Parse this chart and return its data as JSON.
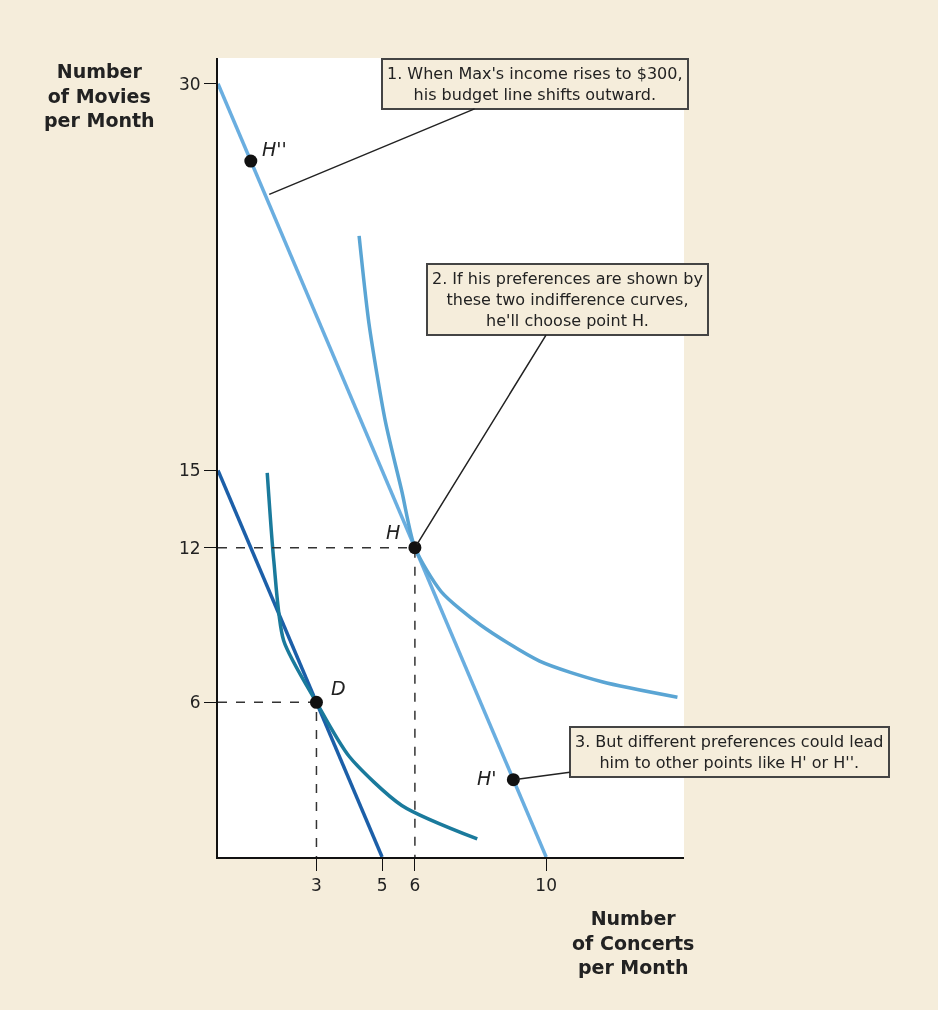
{
  "chart_data": {
    "type": "line",
    "xlabel": "Number\nof Concerts\nper Month",
    "ylabel": "Number\nof Movies\nper Month",
    "xlim": [
      0,
      14.2
    ],
    "ylim": [
      0,
      31
    ],
    "xticks": [
      3,
      5,
      6,
      10
    ],
    "yticks": [
      6,
      12,
      15,
      30
    ],
    "series": [
      {
        "color": "#1c5fa8",
        "x": [
          0,
          5
        ],
        "values": [
          15,
          0
        ]
      },
      {
        "color": "#6aaee0",
        "x": [
          0,
          10
        ],
        "values": [
          30,
          0
        ]
      },
      {
        "color": "#1a7a9c",
        "x": [
          1.5,
          1.7,
          2.0,
          3.0,
          4.0,
          5.6,
          7.9
        ],
        "values": [
          14.9,
          11.5,
          8.4,
          6.0,
          3.9,
          2.0,
          0.7
        ]
      },
      {
        "color": "#5aa5d4",
        "x": [
          4.3,
          4.6,
          5.1,
          5.6,
          6.0,
          6.8,
          8.0,
          9.8,
          11.7,
          14.0
        ],
        "values": [
          24.1,
          20.7,
          16.9,
          14.2,
          12.0,
          10.3,
          9.0,
          7.6,
          6.8,
          6.2
        ]
      },
      {
        "color": "#333333",
        "line_style": "dashed",
        "x": [
          0,
          6,
          6
        ],
        "values": [
          12,
          12,
          0
        ]
      },
      {
        "color": "#333333",
        "line_style": "dashed",
        "x": [
          0,
          3,
          3
        ],
        "values": [
          6,
          6,
          0
        ]
      },
      {
        "type": "scatter",
        "color": "#111111",
        "marker": "circle",
        "x": [
          1,
          3,
          6,
          9
        ],
        "values": [
          27,
          6,
          12,
          3
        ]
      }
    ],
    "annotations": [
      {
        "text": "H''",
        "x": 1,
        "y": 27
      },
      {
        "text": "D",
        "x": 3,
        "y": 6
      },
      {
        "text": "H",
        "x": 6,
        "y": 12
      },
      {
        "text": "H'",
        "x": 9,
        "y": 3
      },
      {
        "text": "1. When Max's income rises to $300,\nhis budget line shifts outward.",
        "x": 1.45,
        "y": 25.65
      },
      {
        "text": "2. If his preferences are shown by\nthese two indifference curves,\nhe'll choose point H.",
        "x": 6,
        "y": 12
      },
      {
        "text": "3. But different preferences could lead\nhim to other points like H' or H''.",
        "x": 9,
        "y": 3
      }
    ]
  }
}
